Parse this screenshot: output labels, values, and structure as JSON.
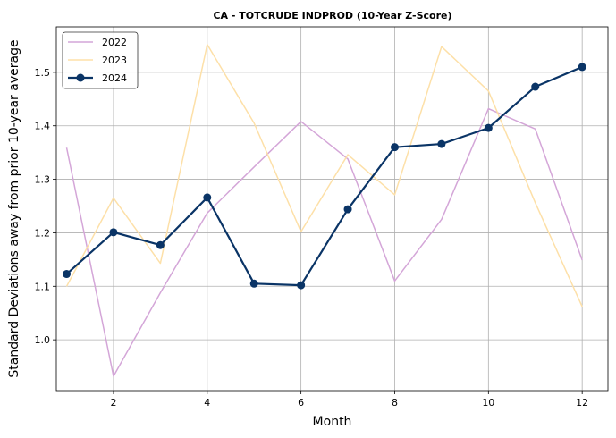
{
  "chart_data": {
    "type": "line",
    "title": "CA - TOTCRUDE INDPROD (10-Year Z-Score)",
    "xlabel": "Month",
    "ylabel": "Standard Deviations away from prior 10-year average",
    "xlim": [
      0.78,
      12.55
    ],
    "ylim": [
      0.905,
      1.585
    ],
    "xticks": [
      2,
      4,
      6,
      8,
      10,
      12
    ],
    "yticks": [
      1.0,
      1.1,
      1.2,
      1.3,
      1.4,
      1.5
    ],
    "xtick_labels": [
      "2",
      "4",
      "6",
      "8",
      "10",
      "12"
    ],
    "ytick_labels": [
      "1.0",
      "1.1",
      "1.2",
      "1.3",
      "1.4",
      "1.5"
    ],
    "grid": true,
    "legend_position": "top-left",
    "x": [
      1,
      2,
      3,
      4,
      5,
      6,
      7,
      8,
      9,
      10,
      11,
      12
    ],
    "series": [
      {
        "name": "2022",
        "color": "#d4a6d8",
        "markers": false,
        "values": [
          1.359,
          0.932,
          1.088,
          1.237,
          1.323,
          1.408,
          1.338,
          1.11,
          1.225,
          1.432,
          1.394,
          1.149
        ]
      },
      {
        "name": "2023",
        "color": "#fde0a8",
        "markers": false,
        "values": [
          1.1,
          1.265,
          1.143,
          1.552,
          1.405,
          1.202,
          1.346,
          1.271,
          1.548,
          1.465,
          1.256,
          1.062
        ]
      },
      {
        "name": "2024",
        "color": "#0a3466",
        "markers": true,
        "values": [
          1.123,
          1.201,
          1.177,
          1.266,
          1.105,
          1.102,
          1.244,
          1.36,
          1.366,
          1.396,
          1.473,
          1.51
        ]
      }
    ]
  }
}
